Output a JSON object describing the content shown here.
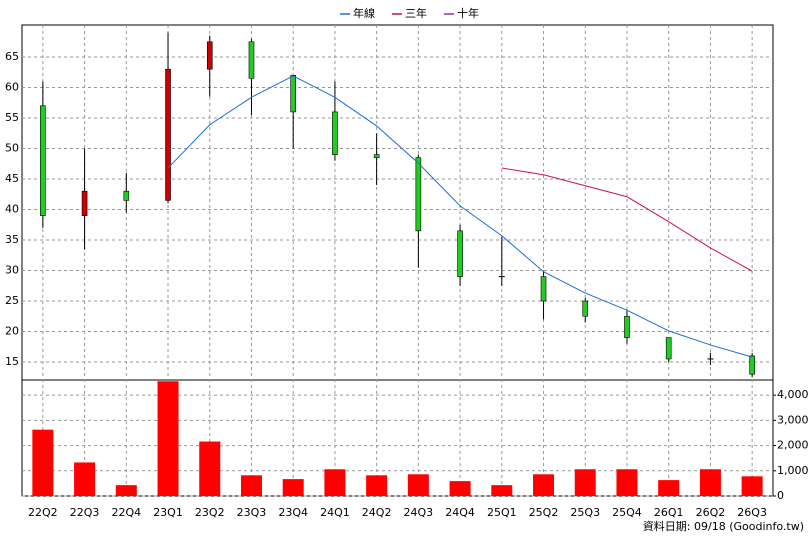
{
  "chart_data": [
    {
      "type": "candlestick",
      "categories": [
        "22Q2",
        "22Q3",
        "22Q4",
        "23Q1",
        "23Q2",
        "23Q3",
        "23Q4",
        "24Q1",
        "24Q2",
        "24Q3",
        "24Q4",
        "25Q1",
        "25Q2",
        "25Q3",
        "25Q4",
        "26Q1",
        "26Q2",
        "26Q3"
      ],
      "open": [
        57,
        39,
        43,
        41.5,
        63,
        67.5,
        62,
        56,
        49,
        48.5,
        36.5,
        29,
        29,
        25,
        22.5,
        19,
        15.5,
        16
      ],
      "high": [
        61,
        50,
        46,
        69,
        68.5,
        68,
        62,
        61,
        52.5,
        49,
        37.5,
        35.5,
        30,
        25.5,
        23.5,
        19,
        16.5,
        16.5
      ],
      "low": [
        37,
        33.5,
        39.5,
        41,
        58.5,
        55.5,
        50,
        48,
        44,
        30.5,
        27.5,
        27.5,
        22,
        21.5,
        18,
        15,
        14.5,
        12.5
      ],
      "close": [
        39,
        43,
        41.5,
        63,
        67.5,
        61.5,
        56,
        49,
        48.5,
        36.5,
        29,
        29,
        25,
        22.5,
        19,
        15.5,
        15.5,
        13
      ],
      "up_color": "#cc0000",
      "down_color": "#22cc22",
      "series": [
        {
          "name": "年線",
          "color": "#1a6fd6",
          "values": [
            null,
            null,
            null,
            46.8,
            53.9,
            58.4,
            61.9,
            58.4,
            53.7,
            47.6,
            40.6,
            35.7,
            29.8,
            26.3,
            23.5,
            20.1,
            17.8,
            15.8
          ]
        },
        {
          "name": "三年",
          "color": "#cc1155",
          "values": [
            null,
            null,
            null,
            null,
            null,
            null,
            null,
            null,
            null,
            null,
            null,
            46.8,
            45.7,
            43.9,
            42.1,
            38,
            33.7,
            29.9
          ]
        },
        {
          "name": "十年",
          "color": "#993399",
          "values": [
            null,
            null,
            null,
            null,
            null,
            null,
            null,
            null,
            null,
            null,
            null,
            null,
            null,
            null,
            null,
            null,
            null,
            null
          ]
        }
      ],
      "ylim": [
        12.05,
        70.25
      ],
      "yticks": [
        15,
        20,
        25,
        30,
        35,
        40,
        45,
        50,
        55,
        60,
        65
      ],
      "grid": true,
      "legend": "top"
    },
    {
      "type": "bar",
      "categories": [
        "22Q2",
        "22Q3",
        "22Q4",
        "23Q1",
        "23Q2",
        "23Q3",
        "23Q4",
        "24Q1",
        "24Q2",
        "24Q3",
        "24Q4",
        "25Q1",
        "25Q2",
        "25Q3",
        "25Q4",
        "26Q1",
        "26Q2",
        "26Q3"
      ],
      "values": [
        2630,
        1330,
        430,
        4550,
        2160,
        820,
        670,
        1060,
        820,
        860,
        590,
        430,
        860,
        1060,
        1060,
        630,
        1060,
        780
      ],
      "color": "#ff0000",
      "ylim": [
        0,
        4600
      ],
      "yticks": [
        0,
        {
          "value": 1000,
          "label": "1,000"
        },
        {
          "value": 2000,
          "label": "2,000"
        },
        {
          "value": 3000,
          "label": "3,000"
        },
        {
          "value": 4000,
          "label": "4,000"
        }
      ],
      "grid": true,
      "footnote": "資料日期: 09/18 (Goodinfo.tw)"
    }
  ]
}
